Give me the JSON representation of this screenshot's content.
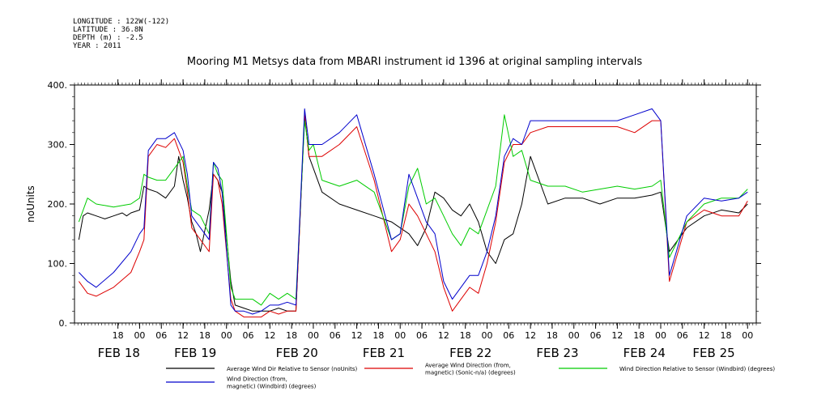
{
  "header": {
    "meta_lines": [
      "LONGITUDE : 122W(-122)",
      "LATITUDE : 36.8N",
      "DEPTH (m) : -2.5",
      "YEAR : 2011"
    ]
  },
  "chart_data": {
    "type": "line",
    "title": "Mooring M1 Metsys data from MBARI instrument id 1396 at original sampling intervals",
    "ylabel": "noUnits",
    "ylim": [
      0,
      400
    ],
    "yticks": [
      0,
      100,
      200,
      300,
      400
    ],
    "ytick_labels": [
      "0.",
      "100.",
      "200.",
      "300.",
      "400."
    ],
    "xlim": [
      -0.25,
      7.6
    ],
    "hour_ticks": [
      {
        "x": 0.25,
        "label": "18"
      },
      {
        "x": 0.5,
        "label": "00"
      },
      {
        "x": 0.75,
        "label": "06"
      },
      {
        "x": 1.0,
        "label": "12"
      },
      {
        "x": 1.25,
        "label": "18"
      },
      {
        "x": 1.5,
        "label": "00"
      },
      {
        "x": 1.75,
        "label": "06"
      },
      {
        "x": 2.0,
        "label": "12"
      },
      {
        "x": 2.25,
        "label": "18"
      },
      {
        "x": 2.5,
        "label": "00"
      },
      {
        "x": 2.75,
        "label": "06"
      },
      {
        "x": 3.0,
        "label": "12"
      },
      {
        "x": 3.25,
        "label": "18"
      },
      {
        "x": 3.5,
        "label": "00"
      },
      {
        "x": 3.75,
        "label": "06"
      },
      {
        "x": 4.0,
        "label": "12"
      },
      {
        "x": 4.25,
        "label": "18"
      },
      {
        "x": 4.5,
        "label": "00"
      },
      {
        "x": 4.75,
        "label": "06"
      },
      {
        "x": 5.0,
        "label": "12"
      },
      {
        "x": 5.25,
        "label": "18"
      },
      {
        "x": 5.5,
        "label": "00"
      },
      {
        "x": 5.75,
        "label": "06"
      },
      {
        "x": 6.0,
        "label": "12"
      },
      {
        "x": 6.25,
        "label": "18"
      },
      {
        "x": 6.5,
        "label": "00"
      },
      {
        "x": 6.75,
        "label": "06"
      },
      {
        "x": 7.0,
        "label": "12"
      },
      {
        "x": 7.25,
        "label": "18"
      },
      {
        "x": 7.5,
        "label": "00"
      }
    ],
    "day_labels": [
      {
        "x": 0.0,
        "label": "FEB 18"
      },
      {
        "x": 0.88,
        "label": "FEB 19"
      },
      {
        "x": 2.05,
        "label": "FEB 20"
      },
      {
        "x": 3.05,
        "label": "FEB 21"
      },
      {
        "x": 4.05,
        "label": "FEB 22"
      },
      {
        "x": 5.05,
        "label": "FEB 23"
      },
      {
        "x": 6.05,
        "label": "FEB 24"
      },
      {
        "x": 6.85,
        "label": "FEB 25"
      }
    ],
    "series": [
      {
        "name": "Average Wind Dir Relative to Sensor (noUnits)",
        "color": "#000000",
        "x": [
          -0.2,
          -0.15,
          -0.1,
          0.0,
          0.1,
          0.2,
          0.3,
          0.35,
          0.4,
          0.5,
          0.55,
          0.6,
          0.7,
          0.8,
          0.9,
          0.95,
          1.0,
          1.05,
          1.1,
          1.15,
          1.2,
          1.3,
          1.35,
          1.4,
          1.45,
          1.55,
          1.6,
          1.7,
          1.8,
          1.9,
          2.0,
          2.1,
          2.2,
          2.3,
          2.4,
          2.45,
          2.5,
          2.6,
          2.8,
          3.0,
          3.2,
          3.4,
          3.5,
          3.6,
          3.7,
          3.8,
          3.9,
          4.0,
          4.1,
          4.2,
          4.3,
          4.4,
          4.5,
          4.6,
          4.7,
          4.8,
          4.9,
          5.0,
          5.2,
          5.4,
          5.6,
          5.8,
          6.0,
          6.2,
          6.4,
          6.5,
          6.6,
          6.8,
          7.0,
          7.2,
          7.4,
          7.5
        ],
        "y": [
          140,
          180,
          185,
          180,
          175,
          180,
          185,
          180,
          185,
          190,
          230,
          225,
          220,
          210,
          230,
          280,
          240,
          210,
          170,
          150,
          120,
          190,
          250,
          240,
          220,
          70,
          30,
          25,
          20,
          20,
          20,
          25,
          20,
          20,
          350,
          280,
          260,
          220,
          200,
          190,
          180,
          170,
          160,
          150,
          130,
          160,
          220,
          210,
          190,
          180,
          200,
          170,
          120,
          100,
          140,
          150,
          200,
          280,
          200,
          210,
          210,
          200,
          210,
          210,
          215,
          220,
          120,
          160,
          180,
          190,
          185,
          200
        ]
      },
      {
        "name": "Average Wind Direction (from, magnetic) (Sonic-n/a) (degrees)",
        "color": "#dd0000",
        "x": [
          -0.2,
          -0.1,
          0.0,
          0.2,
          0.4,
          0.5,
          0.55,
          0.6,
          0.7,
          0.8,
          0.9,
          1.0,
          1.05,
          1.1,
          1.2,
          1.3,
          1.35,
          1.4,
          1.45,
          1.55,
          1.6,
          1.7,
          1.8,
          1.9,
          2.0,
          2.1,
          2.2,
          2.3,
          2.4,
          2.45,
          2.5,
          2.6,
          2.8,
          3.0,
          3.2,
          3.4,
          3.5,
          3.6,
          3.7,
          3.8,
          3.9,
          4.0,
          4.1,
          4.2,
          4.3,
          4.4,
          4.5,
          4.6,
          4.7,
          4.8,
          4.9,
          5.0,
          5.2,
          5.4,
          5.6,
          5.8,
          6.0,
          6.2,
          6.4,
          6.5,
          6.6,
          6.8,
          7.0,
          7.2,
          7.4,
          7.5
        ],
        "y": [
          70,
          50,
          45,
          60,
          85,
          120,
          140,
          280,
          300,
          295,
          310,
          270,
          220,
          160,
          140,
          120,
          250,
          240,
          200,
          40,
          20,
          10,
          10,
          10,
          20,
          15,
          20,
          20,
          350,
          280,
          280,
          280,
          300,
          330,
          240,
          120,
          140,
          200,
          180,
          150,
          120,
          60,
          20,
          40,
          60,
          50,
          100,
          170,
          270,
          300,
          300,
          320,
          330,
          330,
          330,
          330,
          330,
          320,
          340,
          340,
          70,
          170,
          190,
          180,
          180,
          205
        ]
      },
      {
        "name": "Wind Direction Relative to Sensor (Windbird) (degrees)",
        "color": "#00cc00",
        "x": [
          -0.2,
          -0.1,
          0.0,
          0.2,
          0.4,
          0.5,
          0.55,
          0.6,
          0.7,
          0.8,
          0.9,
          1.0,
          1.05,
          1.1,
          1.2,
          1.3,
          1.35,
          1.4,
          1.45,
          1.55,
          1.6,
          1.7,
          1.8,
          1.9,
          2.0,
          2.1,
          2.2,
          2.3,
          2.4,
          2.45,
          2.5,
          2.6,
          2.8,
          3.0,
          3.2,
          3.4,
          3.5,
          3.6,
          3.7,
          3.8,
          3.9,
          4.0,
          4.1,
          4.2,
          4.3,
          4.4,
          4.5,
          4.6,
          4.7,
          4.8,
          4.9,
          5.0,
          5.2,
          5.4,
          5.6,
          5.8,
          6.0,
          6.2,
          6.4,
          6.5,
          6.6,
          6.8,
          7.0,
          7.2,
          7.4,
          7.5
        ],
        "y": [
          170,
          210,
          200,
          195,
          200,
          210,
          250,
          245,
          240,
          240,
          260,
          280,
          230,
          190,
          180,
          150,
          270,
          250,
          240,
          60,
          40,
          40,
          40,
          30,
          50,
          40,
          50,
          40,
          340,
          290,
          300,
          240,
          230,
          240,
          220,
          140,
          150,
          230,
          260,
          200,
          210,
          180,
          150,
          130,
          160,
          150,
          190,
          230,
          350,
          280,
          290,
          240,
          230,
          230,
          220,
          225,
          230,
          225,
          230,
          240,
          110,
          170,
          200,
          210,
          210,
          225
        ]
      },
      {
        "name": "Wind Direction (from, magnetic) (Windbird) (degrees)",
        "color": "#0000cc",
        "x": [
          -0.2,
          -0.1,
          0.0,
          0.2,
          0.4,
          0.5,
          0.55,
          0.6,
          0.7,
          0.8,
          0.9,
          1.0,
          1.05,
          1.1,
          1.2,
          1.3,
          1.35,
          1.4,
          1.45,
          1.55,
          1.6,
          1.7,
          1.8,
          1.9,
          2.0,
          2.1,
          2.2,
          2.3,
          2.4,
          2.45,
          2.5,
          2.6,
          2.8,
          3.0,
          3.2,
          3.4,
          3.5,
          3.6,
          3.7,
          3.8,
          3.9,
          4.0,
          4.1,
          4.2,
          4.3,
          4.4,
          4.5,
          4.6,
          4.7,
          4.8,
          4.9,
          5.0,
          5.2,
          5.4,
          5.6,
          5.8,
          6.0,
          6.2,
          6.4,
          6.5,
          6.6,
          6.8,
          7.0,
          7.2,
          7.4,
          7.5
        ],
        "y": [
          85,
          70,
          60,
          85,
          120,
          150,
          160,
          290,
          310,
          310,
          320,
          290,
          250,
          180,
          160,
          140,
          270,
          260,
          220,
          30,
          20,
          20,
          15,
          20,
          30,
          30,
          35,
          30,
          360,
          300,
          300,
          300,
          320,
          350,
          250,
          140,
          150,
          250,
          210,
          170,
          150,
          70,
          40,
          60,
          80,
          80,
          120,
          180,
          280,
          310,
          300,
          340,
          340,
          340,
          340,
          340,
          340,
          350,
          360,
          340,
          80,
          180,
          210,
          205,
          210,
          220
        ]
      }
    ],
    "legend": [
      {
        "label_lines": [
          "Average Wind Dir Relative to Sensor (noUnits)"
        ],
        "color": "#000000"
      },
      {
        "label_lines": [
          "Average Wind Direction (from,",
          "magnetic) (Sonic-n/a) (degrees)"
        ],
        "color": "#dd0000"
      },
      {
        "label_lines": [
          "Wind Direction Relative to Sensor (Windbird) (degrees)"
        ],
        "color": "#00cc00"
      },
      {
        "label_lines": [
          "Wind Direction (from,",
          "magnetic) (Windbird) (degrees)"
        ],
        "color": "#0000cc"
      }
    ],
    "legend_placement": "bottom",
    "grid": false
  }
}
